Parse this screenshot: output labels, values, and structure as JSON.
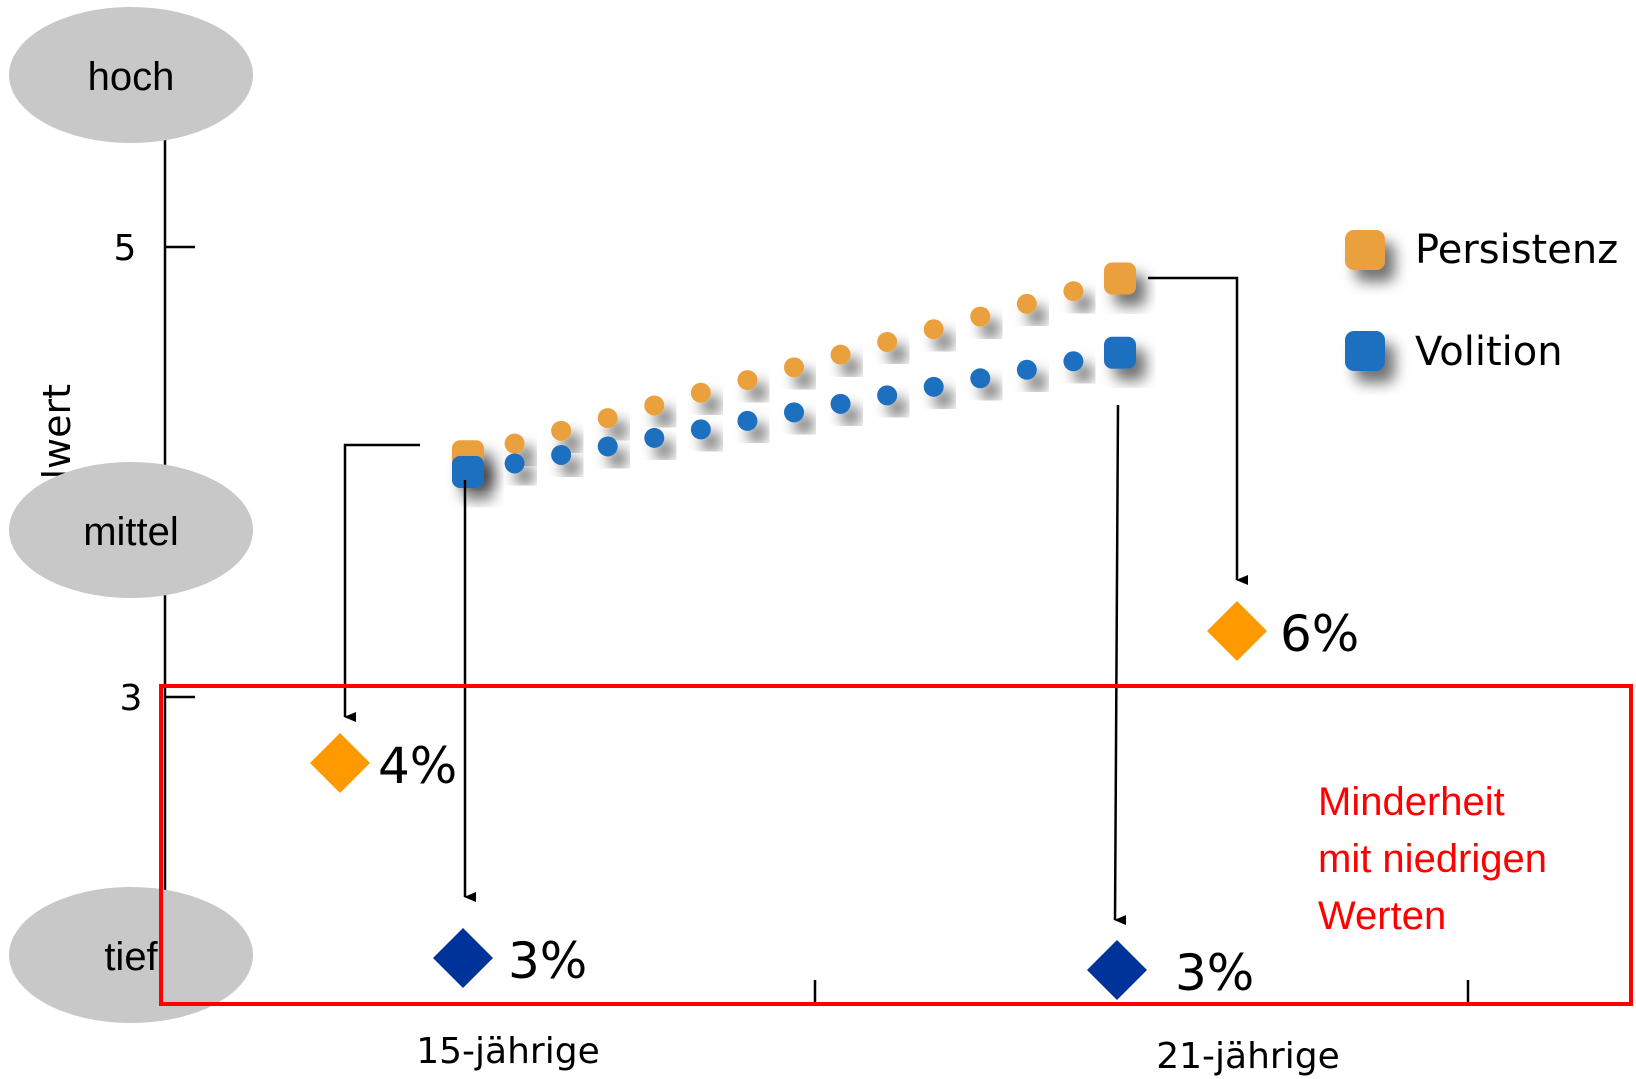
{
  "chart_data": {
    "type": "line",
    "ylabel": "Mittelwert",
    "yticks": [
      "5",
      "3"
    ],
    "categories": [
      "15-jährige",
      "21-jährige"
    ],
    "ylim": [
      3,
      5
    ],
    "series": [
      {
        "name": "Persistenz",
        "color": "#E9A03C",
        "values": [
          4.07,
          4.86
        ]
      },
      {
        "name": "Volition",
        "color": "#1E6FBF",
        "values": [
          4.0,
          4.53
        ]
      }
    ],
    "level_labels": [
      "hoch",
      "mittel",
      "tief"
    ],
    "annotations": [
      {
        "label": "4%",
        "color": "#FF9900",
        "series": "Persistenz",
        "group": "15-jährige"
      },
      {
        "label": "3%",
        "color": "#003399",
        "series": "Volition",
        "group": "15-jährige"
      },
      {
        "label": "6%",
        "color": "#FF9900",
        "series": "Persistenz",
        "group": "21-jährige"
      },
      {
        "label": "3%",
        "color": "#003399",
        "series": "Volition",
        "group": "21-jährige"
      }
    ],
    "highlight_note": [
      "Minderheit",
      "mit niedrigen",
      "Werten"
    ],
    "highlight_color": "#FF0000",
    "legend": "right"
  }
}
